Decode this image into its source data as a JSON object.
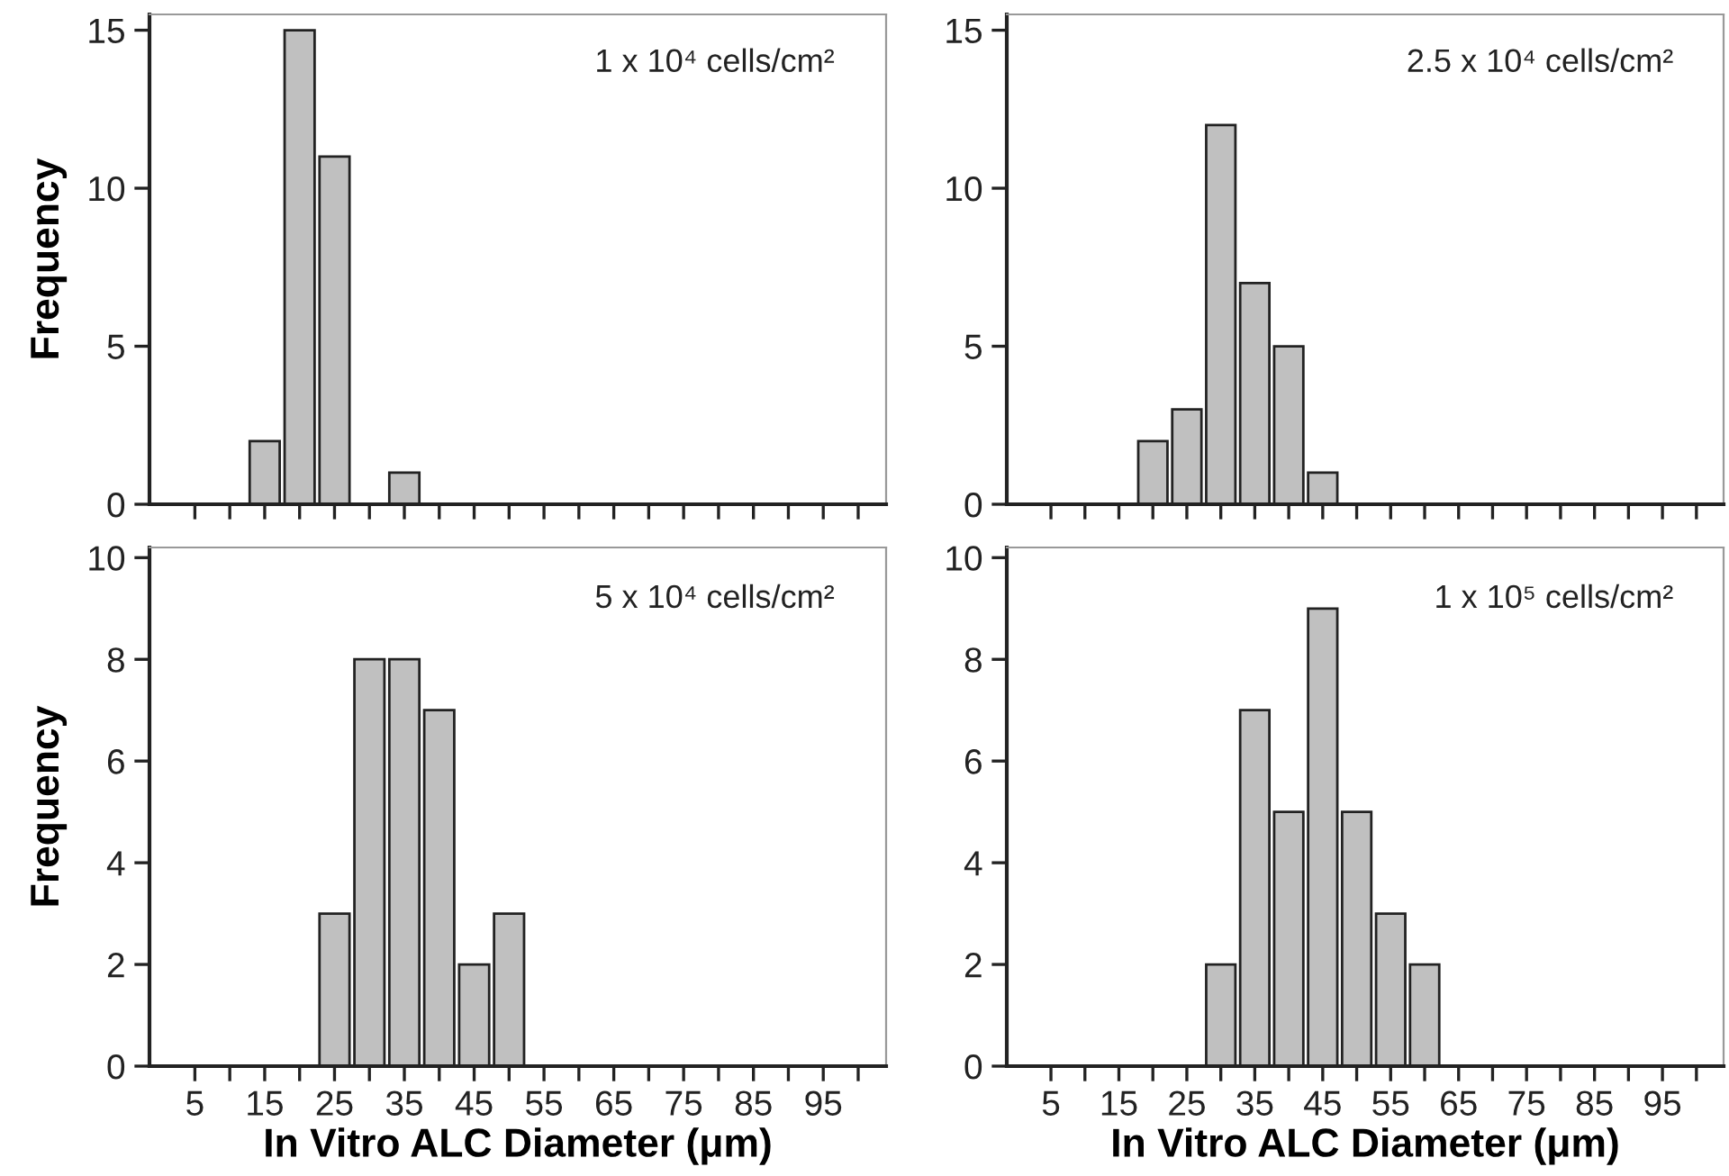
{
  "chart_data": [
    {
      "type": "histogram",
      "ylabel": "Frequency",
      "annotations": [
        "1 x 10⁴ cells/cm²"
      ],
      "bins": [
        2.5,
        7.5,
        12.5,
        17.5,
        22.5,
        27.5,
        32.5,
        37.5,
        42.5,
        47.5,
        52.5,
        57.5,
        62.5,
        67.5,
        72.5,
        77.5,
        82.5,
        87.5,
        92.5,
        97.5,
        102.5
      ],
      "values": [
        0,
        0,
        2,
        15,
        11,
        0,
        1,
        0,
        0,
        0,
        0,
        0,
        0,
        0,
        0,
        0,
        0,
        0,
        0,
        0
      ],
      "color": "#c0c0c0",
      "xlim": [
        -1.5,
        104
      ],
      "ylim": [
        0,
        15.5
      ],
      "yticks": [
        0,
        5,
        10,
        15
      ],
      "xticks": [
        {
          "value": 5,
          "label": null
        },
        {
          "value": 10,
          "label": null
        },
        {
          "value": 15,
          "label": null
        },
        {
          "value": 20,
          "label": null
        },
        {
          "value": 25,
          "label": null
        },
        {
          "value": 30,
          "label": null
        },
        {
          "value": 35,
          "label": null
        },
        {
          "value": 40,
          "label": null
        },
        {
          "value": 45,
          "label": null
        },
        {
          "value": 50,
          "label": null
        },
        {
          "value": 55,
          "label": null
        },
        {
          "value": 60,
          "label": null
        },
        {
          "value": 65,
          "label": null
        },
        {
          "value": 70,
          "label": null
        },
        {
          "value": 75,
          "label": null
        },
        {
          "value": 80,
          "label": null
        },
        {
          "value": 85,
          "label": null
        },
        {
          "value": 90,
          "label": null
        },
        {
          "value": 95,
          "label": null
        },
        {
          "value": 100,
          "label": null
        }
      ],
      "tick_labels": "y"
    },
    {
      "type": "histogram",
      "annotations": [
        "2.5 x 10⁴ cells/cm²"
      ],
      "bins": [
        2.5,
        7.5,
        12.5,
        17.5,
        22.5,
        27.5,
        32.5,
        37.5,
        42.5,
        47.5,
        52.5,
        57.5,
        62.5,
        67.5,
        72.5,
        77.5,
        82.5,
        87.5,
        92.5,
        97.5,
        102.5
      ],
      "values": [
        0,
        0,
        0,
        2,
        3,
        12,
        7,
        5,
        1,
        0,
        0,
        0,
        0,
        0,
        0,
        0,
        0,
        0,
        0,
        0
      ],
      "color": "#c0c0c0",
      "xlim": [
        -1.5,
        104
      ],
      "ylim": [
        0,
        15.5
      ],
      "yticks": [
        0,
        5,
        10,
        15
      ],
      "xticks": [
        {
          "value": 5,
          "label": null
        },
        {
          "value": 10,
          "label": null
        },
        {
          "value": 15,
          "label": null
        },
        {
          "value": 20,
          "label": null
        },
        {
          "value": 25,
          "label": null
        },
        {
          "value": 30,
          "label": null
        },
        {
          "value": 35,
          "label": null
        },
        {
          "value": 40,
          "label": null
        },
        {
          "value": 45,
          "label": null
        },
        {
          "value": 50,
          "label": null
        },
        {
          "value": 55,
          "label": null
        },
        {
          "value": 60,
          "label": null
        },
        {
          "value": 65,
          "label": null
        },
        {
          "value": 70,
          "label": null
        },
        {
          "value": 75,
          "label": null
        },
        {
          "value": 80,
          "label": null
        },
        {
          "value": 85,
          "label": null
        },
        {
          "value": 90,
          "label": null
        },
        {
          "value": 95,
          "label": null
        },
        {
          "value": 100,
          "label": null
        }
      ],
      "tick_labels": "y"
    },
    {
      "type": "histogram",
      "ylabel": "Frequency",
      "xlabel": "In Vitro ALC Diameter (μm)",
      "annotations": [
        "5 x 10⁴ cells/cm²"
      ],
      "bins": [
        2.5,
        7.5,
        12.5,
        17.5,
        22.5,
        27.5,
        32.5,
        37.5,
        42.5,
        47.5,
        52.5,
        57.5,
        62.5,
        67.5,
        72.5,
        77.5,
        82.5,
        87.5,
        92.5,
        97.5,
        102.5
      ],
      "values": [
        0,
        0,
        0,
        0,
        3,
        8,
        8,
        7,
        2,
        3,
        0,
        0,
        0,
        0,
        0,
        0,
        0,
        0,
        0,
        0
      ],
      "color": "#c0c0c0",
      "xlim": [
        -1.5,
        104
      ],
      "ylim": [
        0,
        10.2
      ],
      "yticks": [
        0,
        2,
        4,
        6,
        8,
        10
      ],
      "xticks": [
        {
          "value": 5,
          "label": "5"
        },
        {
          "value": 10,
          "label": null
        },
        {
          "value": 15,
          "label": "15"
        },
        {
          "value": 20,
          "label": null
        },
        {
          "value": 25,
          "label": "25"
        },
        {
          "value": 30,
          "label": null
        },
        {
          "value": 35,
          "label": "35"
        },
        {
          "value": 40,
          "label": null
        },
        {
          "value": 45,
          "label": "45"
        },
        {
          "value": 50,
          "label": null
        },
        {
          "value": 55,
          "label": "55"
        },
        {
          "value": 60,
          "label": null
        },
        {
          "value": 65,
          "label": "65"
        },
        {
          "value": 70,
          "label": null
        },
        {
          "value": 75,
          "label": "75"
        },
        {
          "value": 80,
          "label": null
        },
        {
          "value": 85,
          "label": "85"
        },
        {
          "value": 90,
          "label": null
        },
        {
          "value": 95,
          "label": "95"
        },
        {
          "value": 100,
          "label": null
        }
      ]
    },
    {
      "type": "histogram",
      "xlabel": "In Vitro ALC Diameter (μm)",
      "annotations": [
        "1 x 10⁵ cells/cm²"
      ],
      "bins": [
        2.5,
        7.5,
        12.5,
        17.5,
        22.5,
        27.5,
        32.5,
        37.5,
        42.5,
        47.5,
        52.5,
        57.5,
        62.5,
        67.5,
        72.5,
        77.5,
        82.5,
        87.5,
        92.5,
        97.5,
        102.5
      ],
      "values": [
        0,
        0,
        0,
        0,
        0,
        2,
        7,
        5,
        9,
        5,
        3,
        2,
        0,
        0,
        0,
        0,
        0,
        0,
        0,
        0
      ],
      "color": "#c0c0c0",
      "xlim": [
        -1.5,
        104
      ],
      "ylim": [
        0,
        10.2
      ],
      "yticks": [
        0,
        2,
        4,
        6,
        8,
        10
      ],
      "xticks": [
        {
          "value": 5,
          "label": "5"
        },
        {
          "value": 10,
          "label": null
        },
        {
          "value": 15,
          "label": "15"
        },
        {
          "value": 20,
          "label": null
        },
        {
          "value": 25,
          "label": "25"
        },
        {
          "value": 30,
          "label": null
        },
        {
          "value": 35,
          "label": "35"
        },
        {
          "value": 40,
          "label": null
        },
        {
          "value": 45,
          "label": "45"
        },
        {
          "value": 50,
          "label": null
        },
        {
          "value": 55,
          "label": "55"
        },
        {
          "value": 60,
          "label": null
        },
        {
          "value": 65,
          "label": "65"
        },
        {
          "value": 70,
          "label": null
        },
        {
          "value": 75,
          "label": "75"
        },
        {
          "value": 80,
          "label": null
        },
        {
          "value": 85,
          "label": "85"
        },
        {
          "value": 90,
          "label": null
        },
        {
          "value": 95,
          "label": "95"
        },
        {
          "value": 100,
          "label": null
        }
      ]
    }
  ]
}
